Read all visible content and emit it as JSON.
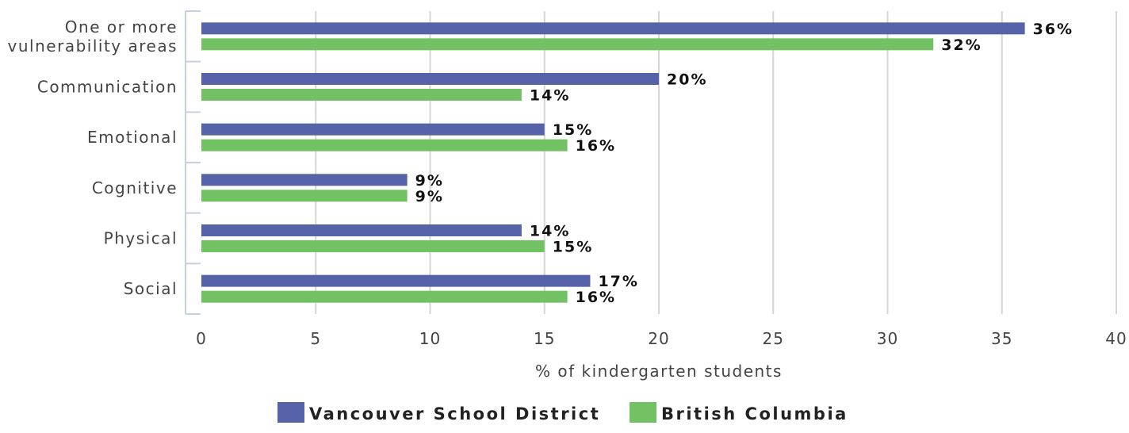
{
  "chart_data": {
    "type": "bar",
    "orientation": "horizontal",
    "categories": [
      "One or more vulnerability areas",
      "Communication",
      "Emotional",
      "Cognitive",
      "Physical",
      "Social"
    ],
    "category_lines": [
      [
        "One or more",
        "vulnerability areas"
      ],
      [
        "Communication"
      ],
      [
        "Emotional"
      ],
      [
        "Cognitive"
      ],
      [
        "Physical"
      ],
      [
        "Social"
      ]
    ],
    "series": [
      {
        "name": "Vancouver School District",
        "color": "#5663a8",
        "values": [
          36,
          20,
          15,
          9,
          14,
          17
        ],
        "labels": [
          "36%",
          "20%",
          "15%",
          "9%",
          "14%",
          "17%"
        ]
      },
      {
        "name": "British Columbia",
        "color": "#72c263",
        "values": [
          32,
          14,
          16,
          9,
          15,
          16
        ],
        "labels": [
          "32%",
          "14%",
          "16%",
          "9%",
          "15%",
          "16%"
        ]
      }
    ],
    "xlabel": "% of kindergarten students",
    "xlim": [
      0,
      40
    ],
    "xticks": [
      0,
      5,
      10,
      15,
      20,
      25,
      30,
      35,
      40
    ],
    "grid": true,
    "legend": "bottom-center"
  }
}
